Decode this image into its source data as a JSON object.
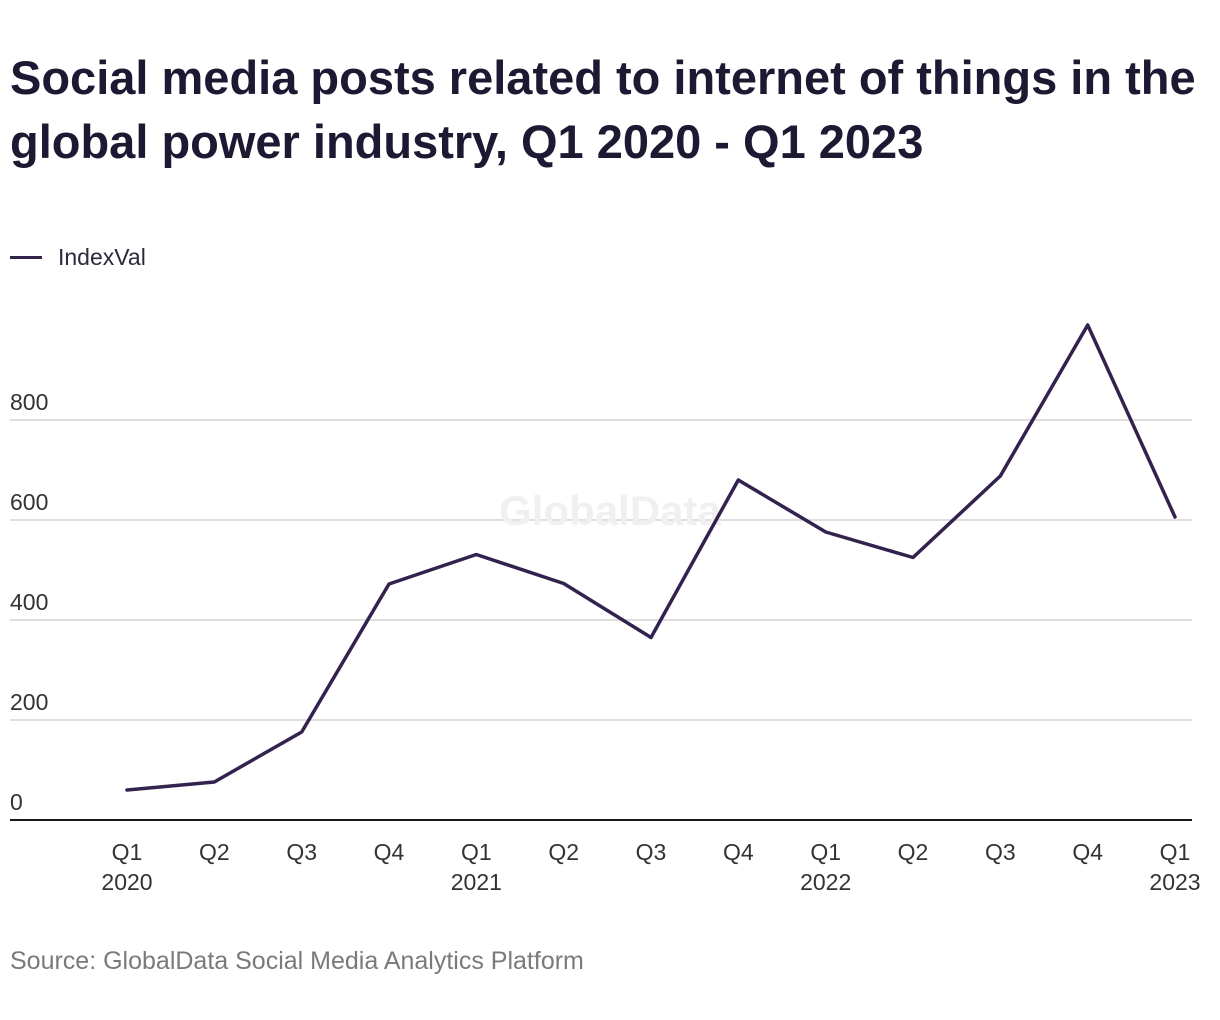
{
  "chart_data": {
    "type": "line",
    "title": "Social media posts related to internet of things in the global power industry, Q1 2020 - Q1 2023",
    "x": [
      {
        "quarter": "Q1",
        "year": "2020"
      },
      {
        "quarter": "Q2",
        "year": ""
      },
      {
        "quarter": "Q3",
        "year": ""
      },
      {
        "quarter": "Q4",
        "year": ""
      },
      {
        "quarter": "Q1",
        "year": "2021"
      },
      {
        "quarter": "Q2",
        "year": ""
      },
      {
        "quarter": "Q3",
        "year": ""
      },
      {
        "quarter": "Q4",
        "year": ""
      },
      {
        "quarter": "Q1",
        "year": "2022"
      },
      {
        "quarter": "Q2",
        "year": ""
      },
      {
        "quarter": "Q3",
        "year": ""
      },
      {
        "quarter": "Q4",
        "year": ""
      },
      {
        "quarter": "Q1",
        "year": "2023"
      }
    ],
    "series": [
      {
        "name": "IndexVal",
        "color": "#33224d",
        "values": [
          60,
          76,
          176,
          472,
          531,
          473,
          365,
          680,
          576,
          525,
          688,
          990,
          606
        ]
      }
    ],
    "yticks": [
      0,
      200,
      400,
      600,
      800
    ],
    "ylim": [
      0,
      1000
    ],
    "grid": true,
    "legend": "top-left",
    "watermark": "GlobalData"
  },
  "source": "Source: GlobalData Social Media Analytics Platform"
}
